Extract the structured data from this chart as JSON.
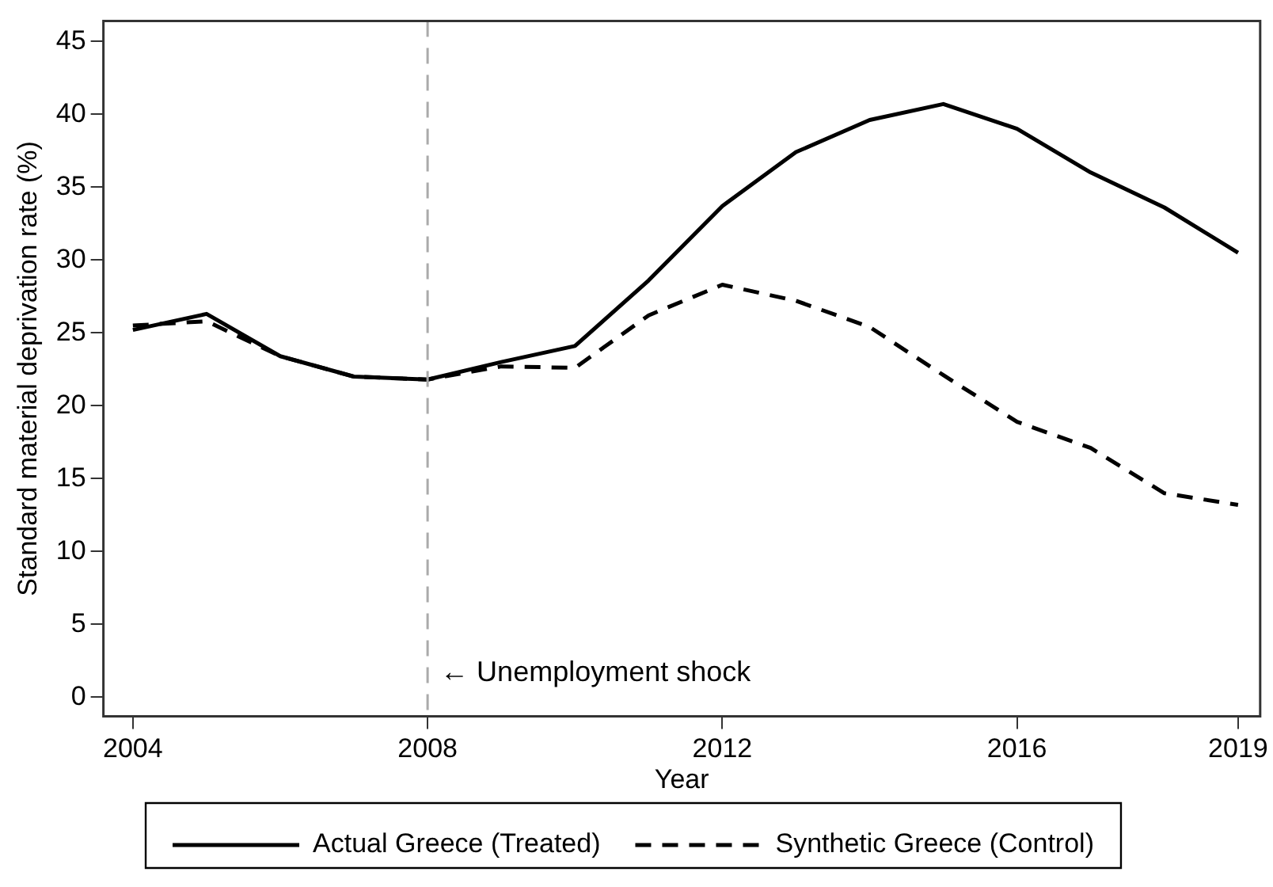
{
  "chart_data": {
    "type": "line",
    "xlabel": "Year",
    "ylabel": "Standard material deprivation rate (%)",
    "x": [
      2004,
      2005,
      2006,
      2007,
      2008,
      2009,
      2010,
      2011,
      2012,
      2013,
      2014,
      2015,
      2016,
      2017,
      2018,
      2019
    ],
    "series": [
      {
        "name": "Actual Greece (Treated)",
        "color": "#000000",
        "line_style": "solid",
        "values": [
          25.2,
          26.3,
          23.4,
          22.0,
          21.8,
          23.0,
          24.1,
          28.6,
          33.7,
          37.4,
          39.6,
          40.7,
          39.0,
          36.0,
          33.6,
          30.5
        ]
      },
      {
        "name": "Synthetic Greece (Control)",
        "color": "#000000",
        "line_style": "dashed",
        "values": [
          25.5,
          25.8,
          23.4,
          22.0,
          21.8,
          22.7,
          22.6,
          26.2,
          28.3,
          27.2,
          25.4,
          22.1,
          18.9,
          17.1,
          14.0,
          13.2
        ]
      }
    ],
    "xlim": [
      2003.6,
      2019.3
    ],
    "xticks": [
      2004,
      2008,
      2012,
      2016,
      2019
    ],
    "ylim": [
      -1.3,
      46.4
    ],
    "yticks": [
      0,
      5,
      10,
      15,
      20,
      25,
      30,
      35,
      40,
      45
    ],
    "ref_lines": [
      {
        "axis": "x",
        "value": 2008,
        "label": "← Unemployment shock",
        "color": "#aaaaaa",
        "line_style": "dashed"
      }
    ],
    "grid": false,
    "legend": "bottom",
    "marker": "none"
  }
}
